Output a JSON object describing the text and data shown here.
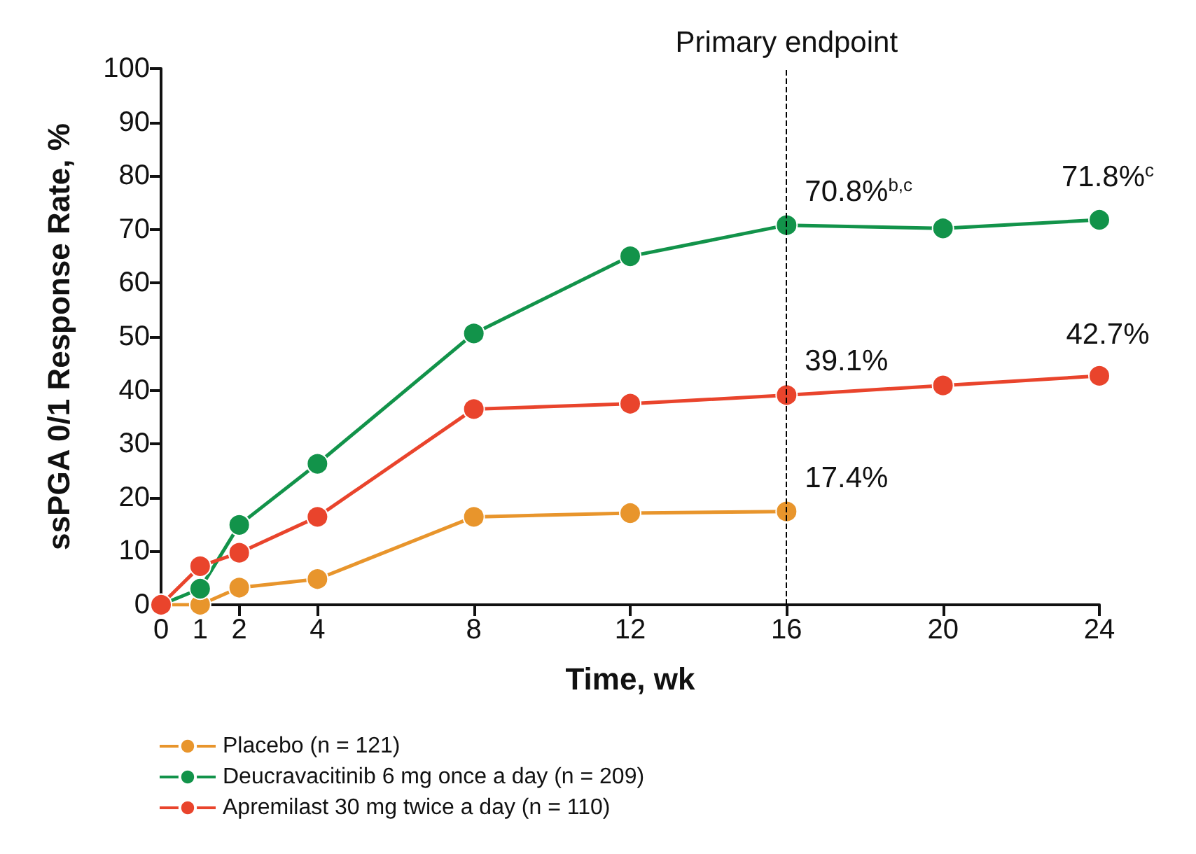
{
  "chart_data": {
    "type": "line",
    "xlabel": "Time, wk",
    "ylabel": "ssPGA 0/1 Response Rate, %",
    "xlim": [
      0,
      24
    ],
    "xticks": [
      0,
      1,
      2,
      4,
      8,
      12,
      16,
      20,
      24
    ],
    "ylim": [
      0,
      100
    ],
    "yticks": [
      0,
      10,
      20,
      30,
      40,
      50,
      60,
      70,
      80,
      90,
      100
    ],
    "grid": false,
    "legend": "bottom",
    "marker": "circle",
    "line_style": "solid",
    "ref_lines": [
      {
        "axis": "x",
        "value": 16,
        "label": "Primary endpoint",
        "line_style": "dashed",
        "color": "#000000"
      }
    ],
    "series": [
      {
        "name": "Placebo (n = 121)",
        "color": "#e8952c",
        "x": [
          0,
          1,
          2,
          4,
          8,
          12,
          16
        ],
        "values": [
          0,
          0,
          3.2,
          4.8,
          16.4,
          17.1,
          17.4
        ],
        "value_labels": [
          null,
          null,
          null,
          null,
          null,
          null,
          "17.4%"
        ]
      },
      {
        "name": "Deucravacitinib 6 mg once a day (n = 209)",
        "color": "#12934a",
        "x": [
          0,
          1,
          2,
          4,
          8,
          12,
          16,
          20,
          24
        ],
        "values": [
          0,
          3,
          14.9,
          26.3,
          50.6,
          65,
          70.8,
          70.2,
          71.8
        ],
        "value_labels": [
          null,
          null,
          null,
          null,
          null,
          null,
          "70.8%$^{b,c}$",
          null,
          "71.8%$^{c}$"
        ]
      },
      {
        "name": "Apremilast 30 mg twice a day (n = 110)",
        "color": "#e9442c",
        "x": [
          0,
          1,
          2,
          4,
          8,
          12,
          16,
          20,
          24
        ],
        "values": [
          0,
          7.2,
          9.7,
          16.4,
          36.5,
          37.5,
          39.1,
          40.9,
          42.7
        ],
        "value_labels": [
          null,
          null,
          null,
          null,
          null,
          null,
          "39.1%",
          null,
          "42.7%"
        ]
      }
    ]
  }
}
